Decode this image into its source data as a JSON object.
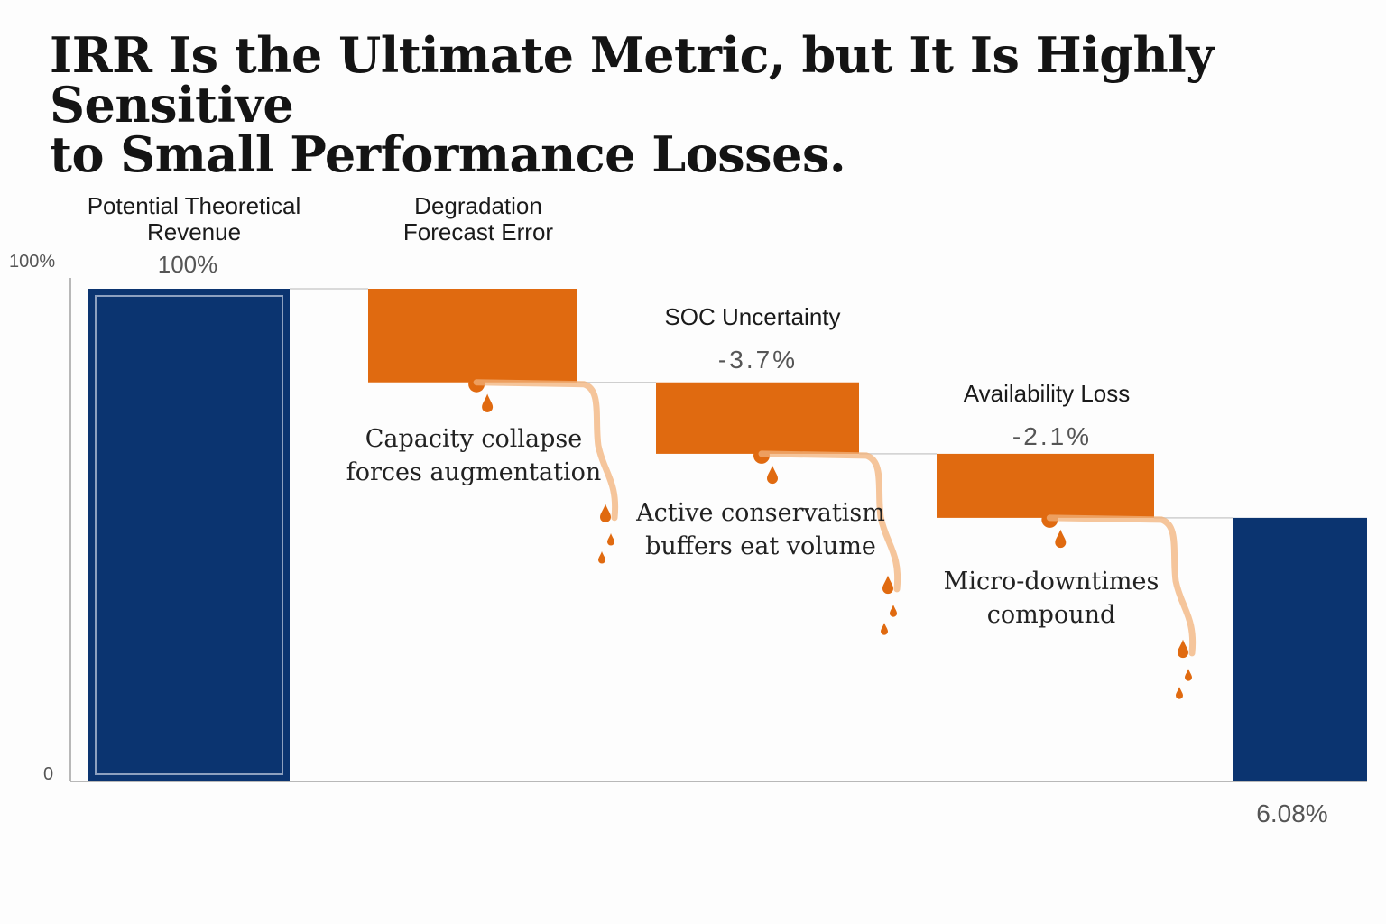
{
  "title_line1": "IRR Is the Ultimate Metric, but It Is Highly Sensitive",
  "title_line2": "to Small Performance Losses.",
  "colors": {
    "total_bar": "#0b3470",
    "loss_bar": "#e06a10",
    "axis": "#b8b8b8",
    "connector": "#cfcfcf",
    "drip": "#e06a10",
    "drip_trail": "#f2b27a"
  },
  "chart_data": {
    "type": "bar",
    "subtype": "waterfall",
    "ylim": [
      0,
      100
    ],
    "y_ticks": [
      {
        "value": 100,
        "label": "100%"
      },
      {
        "value": 0,
        "label": "0"
      }
    ],
    "bars": [
      {
        "kind": "total",
        "label_lines": [
          "Potential Theoretical",
          "Revenue"
        ],
        "value_label": "100%",
        "start": 0,
        "end": 100
      },
      {
        "kind": "loss",
        "label_lines": [
          "Degradation",
          "Forecast Error"
        ],
        "value_label": "",
        "start": 100,
        "end": 81,
        "annotation": [
          "Capacity collapse",
          "forces augmentation"
        ]
      },
      {
        "kind": "loss",
        "label_lines": [
          "SOC Uncertainty"
        ],
        "value_label": "-3.7%",
        "start": 81,
        "end": 66.5,
        "annotation": [
          "Active conservatism",
          "buffers eat volume"
        ]
      },
      {
        "kind": "loss",
        "label_lines": [
          "Availability Loss"
        ],
        "value_label": "-2.1%",
        "start": 66.5,
        "end": 53.5,
        "annotation": [
          "Micro-downtimes",
          "compound"
        ]
      },
      {
        "kind": "total",
        "label_lines": [],
        "value_label": "6.08%",
        "start": 0,
        "end": 53.5
      }
    ]
  }
}
